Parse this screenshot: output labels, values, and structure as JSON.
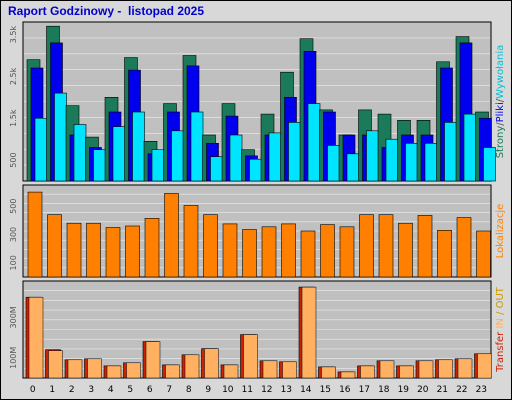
{
  "header": {
    "title": "Raport Godzinowy -  listopad 2025"
  },
  "colors": {
    "background": "#d8d8d8",
    "plot_bg": "#c0c0c0",
    "grid": "#ffffff",
    "strony": "#1a7a5a",
    "pliki": "#0000ee",
    "wywolania": "#00e5ff",
    "lokalizacje": "#ff8000",
    "transfer_in": "#ffb060",
    "transfer_out": "#cc2200"
  },
  "chart_data": [
    {
      "type": "bar",
      "title": "Raport Godzinowy -  listopad 2025",
      "side_labels": [
        {
          "text": "Strony",
          "color": "#1a7a5a"
        },
        {
          "text": "/",
          "color": "#555555"
        },
        {
          "text": "Pliki",
          "color": "#0000ee"
        },
        {
          "text": "/",
          "color": "#555555"
        },
        {
          "text": "Wywołania",
          "color": "#00c0d8"
        }
      ],
      "categories": [
        "0",
        "1",
        "2",
        "3",
        "4",
        "5",
        "6",
        "7",
        "8",
        "9",
        "10",
        "11",
        "12",
        "13",
        "14",
        "15",
        "16",
        "17",
        "18",
        "19",
        "20",
        "21",
        "22",
        "23"
      ],
      "ylim": [
        0,
        3800
      ],
      "yticks": [
        {
          "v": 500,
          "label": "500"
        },
        {
          "v": 1500,
          "label": "1.5k"
        },
        {
          "v": 2500,
          "label": "2.5k"
        },
        {
          "v": 3500,
          "label": "3.5k"
        }
      ],
      "grid": true,
      "series": [
        {
          "name": "Strony",
          "values": [
            2900,
            3700,
            1800,
            1050,
            2000,
            2950,
            950,
            1850,
            3000,
            1100,
            1850,
            750,
            1600,
            2600,
            3400,
            1700,
            1100,
            1700,
            1600,
            1450,
            1450,
            2850,
            3450,
            1650
          ]
        },
        {
          "name": "Pliki",
          "values": [
            2700,
            3300,
            1100,
            800,
            1650,
            2650,
            650,
            1650,
            2750,
            900,
            1550,
            600,
            1100,
            2000,
            3100,
            1650,
            1100,
            1100,
            800,
            1100,
            1100,
            2700,
            3300,
            1500
          ]
        },
        {
          "name": "Wywołania",
          "values": [
            1500,
            2100,
            1350,
            750,
            1300,
            1650,
            750,
            1200,
            1650,
            580,
            1100,
            520,
            1150,
            1400,
            1850,
            850,
            650,
            1200,
            1000,
            900,
            900,
            1400,
            1600,
            800
          ]
        }
      ]
    },
    {
      "type": "bar",
      "side_labels": [
        {
          "text": "Lokalizacje",
          "color": "#ff8000"
        }
      ],
      "categories": [
        "0",
        "1",
        "2",
        "3",
        "4",
        "5",
        "6",
        "7",
        "8",
        "9",
        "10",
        "11",
        "12",
        "13",
        "14",
        "15",
        "16",
        "17",
        "18",
        "19",
        "20",
        "21",
        "22",
        "23"
      ],
      "ylim": [
        0,
        650
      ],
      "yticks": [
        {
          "v": 100,
          "label": "100"
        },
        {
          "v": 300,
          "label": "300"
        },
        {
          "v": 500,
          "label": "500"
        }
      ],
      "grid": true,
      "series": [
        {
          "name": "Lokalizacje",
          "values": [
            600,
            440,
            380,
            380,
            350,
            360,
            415,
            590,
            505,
            440,
            375,
            335,
            355,
            375,
            325,
            370,
            355,
            440,
            440,
            380,
            435,
            330,
            420,
            325
          ]
        }
      ]
    },
    {
      "type": "bar",
      "side_labels": [
        {
          "text": "Transfer",
          "color": "#cc2200"
        },
        {
          "text": " IN",
          "color": "#ffb060"
        },
        {
          "text": " / OUT",
          "color": "#cc9900"
        }
      ],
      "categories": [
        "0",
        "1",
        "2",
        "3",
        "4",
        "5",
        "6",
        "7",
        "8",
        "9",
        "10",
        "11",
        "12",
        "13",
        "14",
        "15",
        "16",
        "17",
        "18",
        "19",
        "20",
        "21",
        "22",
        "23"
      ],
      "ylim": [
        0,
        480
      ],
      "yticks": [
        {
          "v": 100,
          "label": "100M"
        },
        {
          "v": 300,
          "label": "300M"
        }
      ],
      "grid": true,
      "series": [
        {
          "name": "Transfer OUT",
          "values": [
            400,
            140,
            90,
            95,
            60,
            75,
            180,
            65,
            115,
            145,
            65,
            215,
            85,
            80,
            450,
            55,
            30,
            60,
            85,
            60,
            85,
            90,
            95,
            120
          ]
        },
        {
          "name": "Transfer IN",
          "values": [
            400,
            135,
            90,
            95,
            60,
            75,
            180,
            65,
            115,
            145,
            65,
            215,
            85,
            80,
            450,
            55,
            30,
            60,
            85,
            60,
            85,
            90,
            95,
            120
          ]
        }
      ]
    }
  ]
}
